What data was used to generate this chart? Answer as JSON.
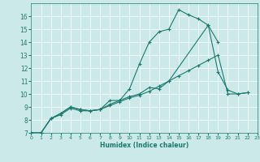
{
  "title": "",
  "xlabel": "Humidex (Indice chaleur)",
  "xlim": [
    0,
    23
  ],
  "ylim": [
    7,
    17
  ],
  "yticks": [
    7,
    8,
    9,
    10,
    11,
    12,
    13,
    14,
    15,
    16
  ],
  "xticks": [
    0,
    1,
    2,
    3,
    4,
    5,
    6,
    7,
    8,
    9,
    10,
    11,
    12,
    13,
    14,
    15,
    16,
    17,
    18,
    19,
    20,
    21,
    22,
    23
  ],
  "bg_color": "#cce9e9",
  "grid_color": "#ffffff",
  "line_color": "#1a7a6e",
  "series": [
    {
      "x": [
        0,
        1,
        2,
        3,
        4,
        5,
        6,
        7,
        8,
        9,
        10,
        11,
        12,
        13,
        14,
        15,
        16,
        17,
        18,
        19
      ],
      "y": [
        7.0,
        7.0,
        8.1,
        8.5,
        9.0,
        8.8,
        8.7,
        8.8,
        9.5,
        9.5,
        10.4,
        12.3,
        14.0,
        14.8,
        15.0,
        16.5,
        16.1,
        15.8,
        15.3,
        14.0
      ]
    },
    {
      "x": [
        0,
        1,
        2,
        3,
        4,
        5,
        6,
        7,
        8,
        9,
        10,
        11,
        12,
        13,
        14,
        18,
        19,
        20,
        21,
        22
      ],
      "y": [
        7.0,
        7.0,
        8.1,
        8.5,
        9.0,
        8.8,
        8.7,
        8.8,
        9.2,
        9.5,
        9.8,
        10.0,
        10.5,
        10.4,
        11.0,
        15.3,
        11.7,
        10.3,
        10.0,
        10.1
      ]
    },
    {
      "x": [
        0,
        1,
        2,
        3,
        4,
        5,
        6,
        7,
        8,
        9,
        10,
        11,
        12,
        13,
        14,
        15,
        16,
        17,
        18,
        19,
        20,
        21,
        22
      ],
      "y": [
        7.0,
        7.0,
        8.1,
        8.4,
        8.9,
        8.7,
        8.7,
        8.8,
        9.1,
        9.4,
        9.7,
        9.9,
        10.2,
        10.6,
        11.0,
        11.4,
        11.8,
        12.2,
        12.6,
        13.0,
        10.0,
        10.0,
        10.1
      ]
    }
  ]
}
